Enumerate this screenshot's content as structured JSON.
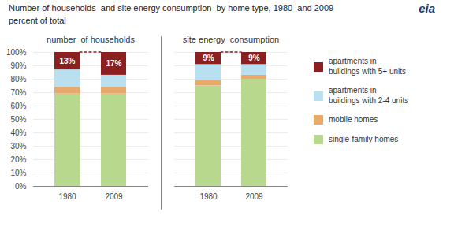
{
  "title": "Number of households  and site energy consumption  by home type, 1980  and 2009",
  "subtitle": "percent of total",
  "annotations": [
    "eia"
  ],
  "chart_data": [
    {
      "type": "bar",
      "stacked": true,
      "title": "number  of households",
      "categories": [
        "1980",
        "2009"
      ],
      "series": [
        {
          "name": "single-family homes",
          "color": "#b8d98d",
          "values": [
            69,
            69
          ]
        },
        {
          "name": "mobile homes",
          "color": "#e8a96b",
          "values": [
            5,
            5
          ]
        },
        {
          "name": "apartments in\nbuildings with 2-4 units",
          "color": "#b8e0f0",
          "values": [
            13,
            9
          ]
        },
        {
          "name": "apartments in\nbuildings with 5+ units",
          "color": "#8b2020",
          "values": [
            13,
            17
          ],
          "data_labels": true,
          "value_labels": [
            "13%",
            "17%"
          ]
        }
      ],
      "ylim": [
        0,
        100
      ],
      "yticks": [
        {
          "value": 0,
          "label": "0%"
        },
        {
          "value": 10,
          "label": "10%"
        },
        {
          "value": 20,
          "label": "20%"
        },
        {
          "value": 30,
          "label": "30%"
        },
        {
          "value": 40,
          "label": "40%"
        },
        {
          "value": 50,
          "label": "50%"
        },
        {
          "value": 60,
          "label": "60%"
        },
        {
          "value": 70,
          "label": "70%"
        },
        {
          "value": 80,
          "label": "80%"
        },
        {
          "value": 90,
          "label": "90%"
        },
        {
          "value": 100,
          "label": "100%"
        }
      ],
      "grid": true,
      "legend": "right"
    },
    {
      "type": "bar",
      "stacked": true,
      "title": "site energy  consumption",
      "categories": [
        "1980",
        "2009"
      ],
      "series": [
        {
          "name": "single-family homes",
          "color": "#b8d98d",
          "values": [
            75,
            80
          ]
        },
        {
          "name": "mobile homes",
          "color": "#e8a96b",
          "values": [
            4,
            3
          ]
        },
        {
          "name": "apartments in\nbuildings with 2-4 units",
          "color": "#b8e0f0",
          "values": [
            12,
            8
          ]
        },
        {
          "name": "apartments in\nbuildings with 5+ units",
          "color": "#8b2020",
          "values": [
            9,
            9
          ],
          "data_labels": true,
          "value_labels": [
            "9%",
            "9%"
          ]
        }
      ],
      "ylim": [
        0,
        100
      ],
      "yticks": [
        0,
        10,
        20,
        30,
        40,
        50,
        60,
        70,
        80,
        90,
        100
      ],
      "grid": true,
      "tick_labels": "x"
    }
  ]
}
